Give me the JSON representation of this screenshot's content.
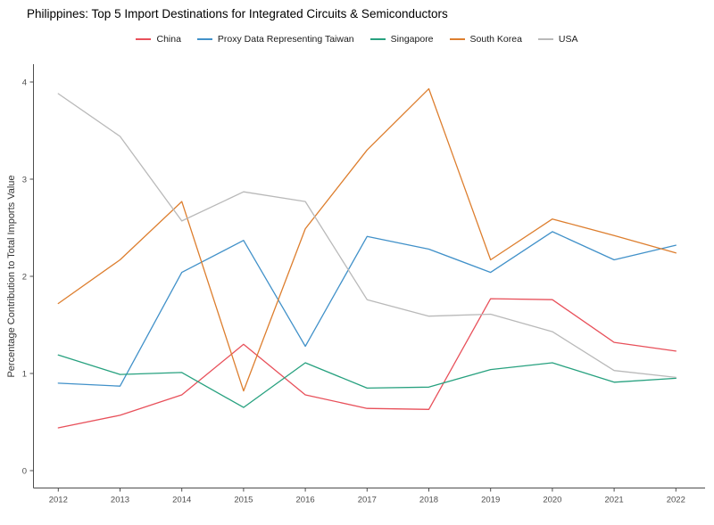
{
  "title": "Philippines: Top 5 Import Destinations for Integrated Circuits & Semiconductors",
  "chart_data": {
    "type": "line",
    "title": "Philippines: Top 5 Import Destinations for Integrated Circuits & Semiconductors",
    "xlabel": "",
    "ylabel": "Percentage Contribution to Total Imports Value",
    "x": [
      2012,
      2013,
      2014,
      2015,
      2016,
      2017,
      2018,
      2019,
      2020,
      2021,
      2022
    ],
    "y_ticks": [
      0,
      1,
      2,
      3,
      4
    ],
    "ylim": [
      0,
      4.2
    ],
    "grid": false,
    "legend_position": "top-center",
    "series": [
      {
        "name": "China",
        "color": "#e8505a",
        "values": [
          0.44,
          0.57,
          0.78,
          1.3,
          0.78,
          0.64,
          0.63,
          1.77,
          1.76,
          1.32,
          1.23
        ]
      },
      {
        "name": "Proxy Data Representing Taiwan",
        "color": "#4191c9",
        "values": [
          0.9,
          0.87,
          2.04,
          2.37,
          1.28,
          2.41,
          2.28,
          2.04,
          2.46,
          2.17,
          2.32
        ]
      },
      {
        "name": "Singapore",
        "color": "#27a17f",
        "values": [
          1.19,
          0.99,
          1.01,
          0.65,
          1.11,
          0.85,
          0.86,
          1.04,
          1.11,
          0.91,
          0.95
        ]
      },
      {
        "name": "South Korea",
        "color": "#dd7e2e",
        "values": [
          1.72,
          2.17,
          2.77,
          0.82,
          2.49,
          3.3,
          3.93,
          2.17,
          2.59,
          2.42,
          2.24
        ]
      },
      {
        "name": "USA",
        "color": "#b9b9b9",
        "values": [
          3.88,
          3.44,
          2.57,
          2.87,
          2.77,
          1.76,
          1.59,
          1.61,
          1.43,
          1.03,
          0.96
        ]
      }
    ]
  },
  "colors": {
    "background": "#ffffff",
    "axis_line": "#4d4d4d",
    "tick_label": "#4d4d4d",
    "title_text": "#000000"
  }
}
